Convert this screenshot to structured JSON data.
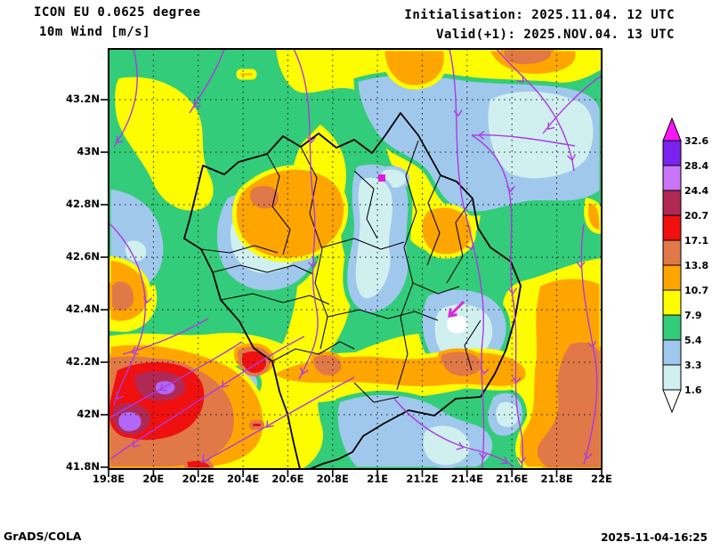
{
  "header": {
    "model_line": "ICON EU 0.0625 degree",
    "param_line": "10m Wind [m/s]",
    "init_line": "Initialisation: 2025.11.04. 12 UTC",
    "valid_line": "Valid(+1): 2025.NOV.04. 13 UTC"
  },
  "axes": {
    "y_ticks": [
      "43.2N",
      "43N",
      "42.8N",
      "42.6N",
      "42.4N",
      "42.2N",
      "42N",
      "41.8N"
    ],
    "x_ticks": [
      "19.8E",
      "20E",
      "20.2E",
      "20.4E",
      "20.6E",
      "20.8E",
      "21E",
      "21.2E",
      "21.4E",
      "21.6E",
      "21.8E",
      "22E"
    ]
  },
  "colorbar": {
    "values": [
      "32.6",
      "28.4",
      "24.4",
      "20.7",
      "17.1",
      "13.8",
      "10.7",
      "7.9",
      "5.4",
      "3.3",
      "1.6"
    ],
    "box_colors": [
      "#7b22ee",
      "#c875f8",
      "#b22855",
      "#f01010",
      "#e07848",
      "#ffa500",
      "#fdfd00",
      "#33cc7a",
      "#a0c8ec",
      "#d0f0f0"
    ],
    "above_max_color": "#f816f8",
    "below_min_color": "#ffffff"
  },
  "map_overlay": {
    "streamline_color": "#ab3be0",
    "border_color": "#000000",
    "station_marker_color": "#e218e2"
  },
  "footer": {
    "credit": "GrADS/COLA",
    "timestamp": "2025-11-04-16:25"
  }
}
